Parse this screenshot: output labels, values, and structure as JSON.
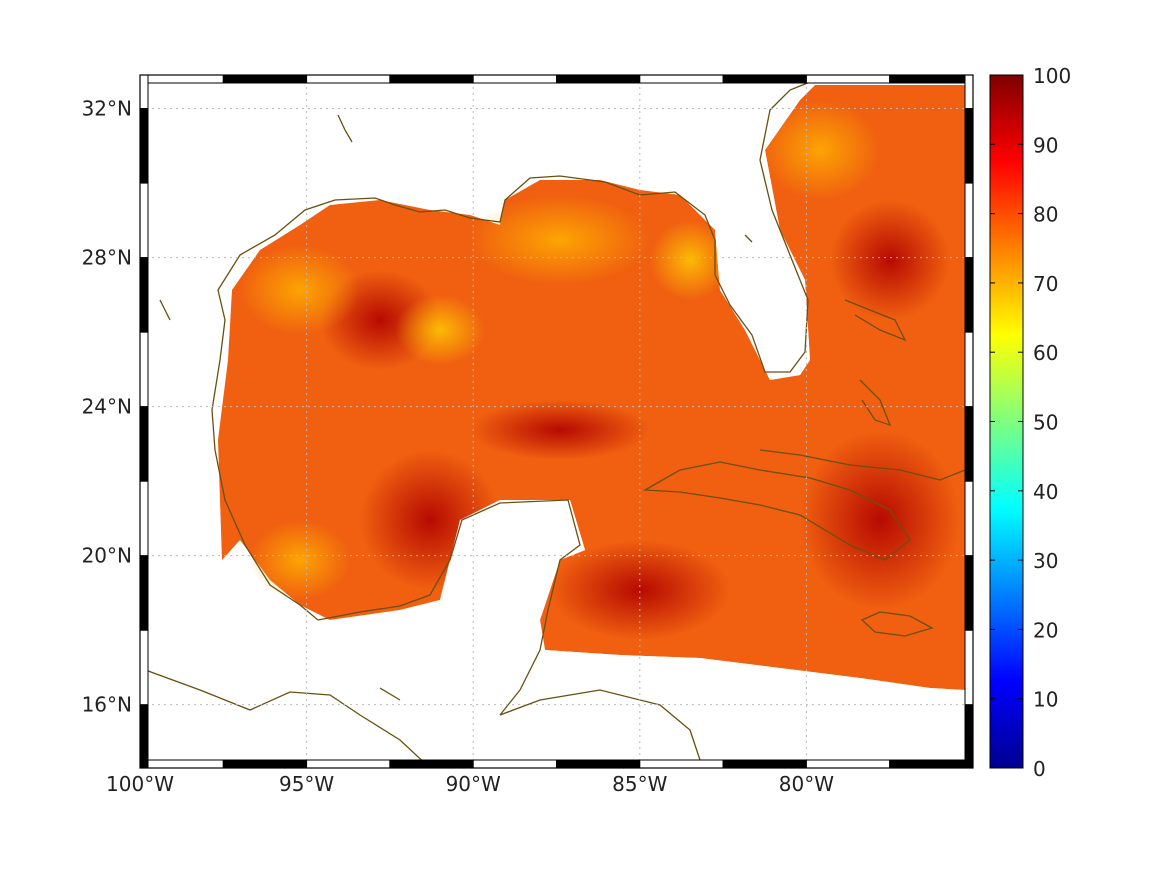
{
  "map": {
    "lon_range": [
      -100,
      -75
    ],
    "lat_range": [
      14.3,
      32.9
    ],
    "lon_ticks": [
      {
        "value": -100,
        "label": "100°W"
      },
      {
        "value": -95,
        "label": "95°W"
      },
      {
        "value": -90,
        "label": "90°W"
      },
      {
        "value": -85,
        "label": "85°W"
      },
      {
        "value": -80,
        "label": "80°W"
      }
    ],
    "lat_ticks": [
      {
        "value": 16,
        "label": "16°N"
      },
      {
        "value": 20,
        "label": "20°N"
      },
      {
        "value": 24,
        "label": "24°N"
      },
      {
        "value": 28,
        "label": "28°N"
      },
      {
        "value": 32,
        "label": "32°N"
      }
    ],
    "coastline_color": "#6b4f10",
    "land_color": "#ffffff",
    "grid": "dotted"
  },
  "colorbar": {
    "min": 0,
    "max": 100,
    "ticks": [
      {
        "value": 0,
        "label": "0"
      },
      {
        "value": 10,
        "label": "10"
      },
      {
        "value": 20,
        "label": "20"
      },
      {
        "value": 30,
        "label": "30"
      },
      {
        "value": 40,
        "label": "40"
      },
      {
        "value": 50,
        "label": "50"
      },
      {
        "value": 60,
        "label": "60"
      },
      {
        "value": 70,
        "label": "70"
      },
      {
        "value": 80,
        "label": "80"
      },
      {
        "value": 90,
        "label": "90"
      },
      {
        "value": 100,
        "label": "100"
      }
    ],
    "colormap": "jet"
  }
}
